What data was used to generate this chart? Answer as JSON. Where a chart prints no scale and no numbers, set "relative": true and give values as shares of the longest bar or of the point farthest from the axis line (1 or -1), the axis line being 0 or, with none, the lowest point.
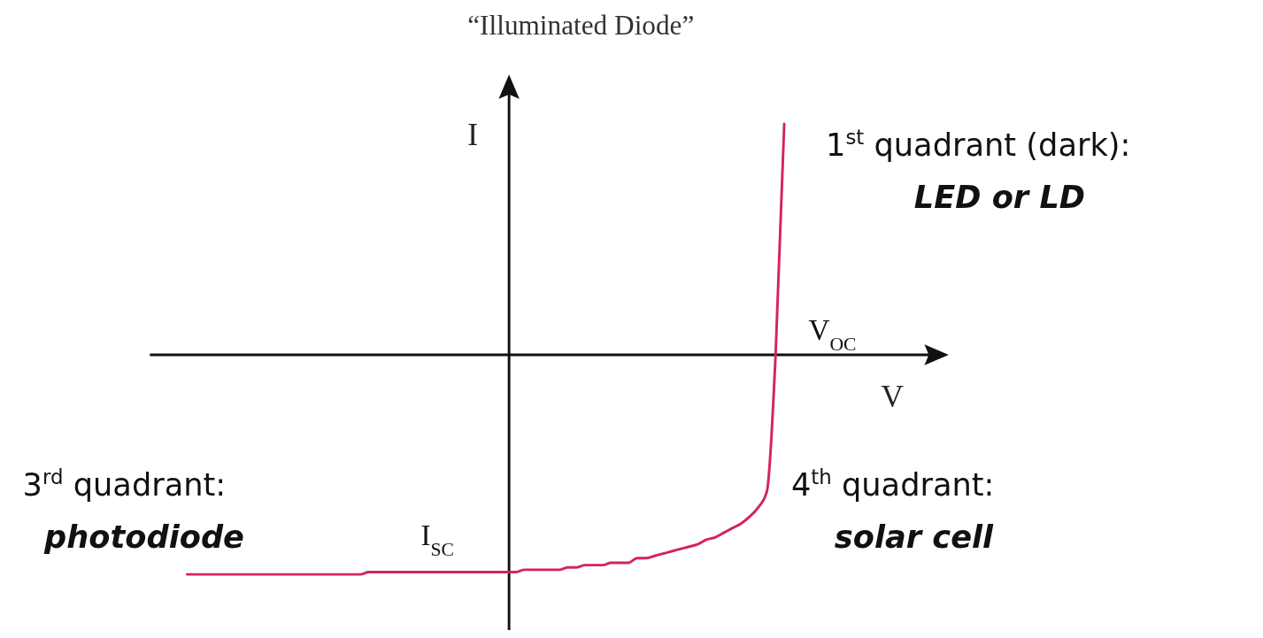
{
  "chart_data": {
    "type": "line",
    "relative": true,
    "title": "“Illuminated Diode”",
    "xlabel": "V",
    "ylabel": "I",
    "categories": [
      null,
      null,
      null,
      null,
      null,
      null,
      null,
      null,
      null,
      null,
      null,
      null,
      null,
      null,
      null,
      null,
      null,
      null,
      null,
      null,
      null,
      null,
      null,
      null,
      null,
      null,
      null,
      null,
      null,
      null,
      null,
      null,
      null,
      null,
      null,
      null,
      null,
      null,
      null,
      null,
      null,
      null,
      null,
      null,
      null,
      null,
      null,
      null,
      null,
      null,
      null,
      null,
      null,
      null,
      null,
      null,
      null,
      null,
      null,
      null,
      null,
      null,
      null,
      null,
      null,
      null,
      null,
      null,
      null,
      null
    ],
    "series": [
      {
        "color": "#d4245a",
        "values": [
          -0.95,
          -0.95,
          -0.95,
          -0.95,
          -0.95,
          -0.95,
          -0.95,
          -0.95,
          -0.95,
          -0.95,
          -0.95,
          -0.95,
          -0.95,
          -0.95,
          -0.95,
          -0.95,
          -0.95,
          -0.95,
          -0.95,
          -0.95,
          -0.95,
          -0.94,
          -0.94,
          -0.94,
          -0.94,
          -0.94,
          -0.94,
          -0.94,
          -0.94,
          -0.94,
          -0.94,
          -0.94,
          -0.94,
          -0.94,
          -0.94,
          -0.94,
          -0.94,
          -0.94,
          -0.94,
          -0.93,
          -0.93,
          -0.93,
          -0.93,
          -0.93,
          -0.92,
          -0.92,
          -0.91,
          -0.91,
          -0.91,
          -0.9,
          -0.9,
          -0.9,
          -0.88,
          -0.88,
          -0.87,
          -0.86,
          -0.85,
          -0.84,
          -0.83,
          -0.82,
          -0.8,
          -0.79,
          -0.77,
          -0.75,
          -0.73,
          -0.7,
          -0.66,
          -0.59,
          0,
          1
        ]
      }
    ],
    "line_style": "solid",
    "marker": "none",
    "grid": false,
    "annotations": [
      "V$_{OC}$",
      "I$_{SC}$",
      "1$^{st}$ quadrant (dark):",
      "LED or LD",
      "3$^{rd}$ quadrant:",
      "photodiode",
      "4$^{th}$ quadrant:",
      "solar cell"
    ]
  }
}
